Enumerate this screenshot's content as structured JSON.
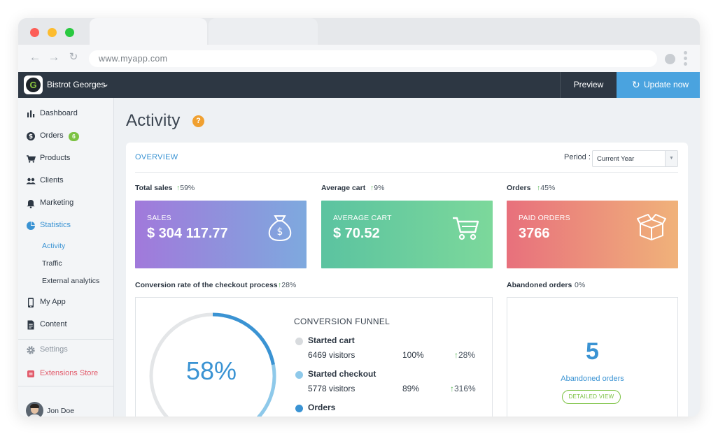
{
  "browser": {
    "url": "www.myapp.com"
  },
  "header": {
    "store_name": "Bistrot Georges",
    "logo_letter": "G",
    "preview_label": "Preview",
    "update_label": "Update now"
  },
  "sidebar": {
    "items": [
      {
        "label": "Dashboard",
        "icon": "bar-chart-icon"
      },
      {
        "label": "Orders",
        "icon": "dollar-circle-icon",
        "badge": "6"
      },
      {
        "label": "Products",
        "icon": "cart-icon"
      },
      {
        "label": "Clients",
        "icon": "users-icon"
      },
      {
        "label": "Marketing",
        "icon": "bell-icon"
      },
      {
        "label": "Statistics",
        "icon": "pie-chart-icon"
      }
    ],
    "sub_items": [
      "Activity",
      "Traffic",
      "External analytics"
    ],
    "lower_items": [
      {
        "label": "My App",
        "icon": "phone-icon"
      },
      {
        "label": "Content",
        "icon": "document-icon"
      }
    ],
    "settings_label": "Settings",
    "extensions_label": "Extensions Store",
    "user_name": "Jon Doe"
  },
  "page": {
    "title": "Activity",
    "help_glyph": "?"
  },
  "overview": {
    "label": "OVERVIEW",
    "period_label": "Period :",
    "period_value": "Current Year"
  },
  "metrics": [
    {
      "title": "Total sales",
      "delta": "59%",
      "card_label": "SALES",
      "card_value": "$ 304 117.77",
      "icon": "money-bag-icon"
    },
    {
      "title": "Average cart",
      "delta": "9%",
      "card_label": "AVERAGE CART",
      "card_value": "$ 70.52",
      "icon": "shopping-cart-icon"
    },
    {
      "title": "Orders",
      "delta": "45%",
      "card_label": "PAID ORDERS",
      "card_value": "3766",
      "icon": "open-box-icon"
    }
  ],
  "conversion": {
    "title": "Conversion rate of the checkout process",
    "delta": "28%",
    "gauge_percent": "58%",
    "gauge_fraction": 0.58,
    "funnel_title": "CONVERSION FUNNEL",
    "steps": [
      {
        "name": "Started cart",
        "visitors": "6469 visitors",
        "percent": "100%",
        "delta": "28%",
        "color": "#d8dbde"
      },
      {
        "name": "Started checkout",
        "visitors": "5778 visitors",
        "percent": "89%",
        "delta": "316%",
        "color": "#8ec9ea"
      },
      {
        "name": "Orders",
        "color": "#3a93d3"
      }
    ]
  },
  "abandoned": {
    "title": "Abandoned orders",
    "delta": "0%",
    "count": "5",
    "label": "Abandoned orders",
    "button_label": "DETAILED VIEW"
  },
  "colors": {
    "accent": "#3a93d3",
    "header_bg": "#2d3743",
    "update_button": "#4aa3df",
    "success": "#7cc243"
  }
}
